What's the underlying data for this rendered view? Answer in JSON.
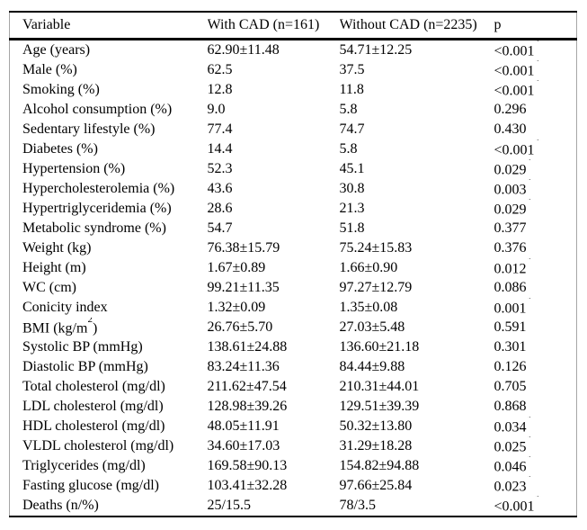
{
  "table": {
    "headers": {
      "variable": "Variable",
      "with_cad": "With CAD (n=161)",
      "without_cad": "Without CAD (n=2235)",
      "p": "p"
    },
    "rows": [
      {
        "variable": "Age (years)",
        "variable_sup": "",
        "variable_post": "",
        "with_cad": "62.90±11.48",
        "without_cad": "54.71±12.25",
        "p": "<0.001",
        "p_sup": "*"
      },
      {
        "variable": "Male (%)",
        "variable_sup": "",
        "variable_post": "",
        "with_cad": "62.5",
        "without_cad": "37.5",
        "p": "<0.001",
        "p_sup": "*"
      },
      {
        "variable": "Smoking (%)",
        "variable_sup": "",
        "variable_post": "",
        "with_cad": "12.8",
        "without_cad": "11.8",
        "p": "<0.001",
        "p_sup": "*"
      },
      {
        "variable": "Alcohol consumption (%)",
        "variable_sup": "",
        "variable_post": "",
        "with_cad": "9.0",
        "without_cad": "5.8",
        "p": "0.296",
        "p_sup": ""
      },
      {
        "variable": "Sedentary lifestyle (%)",
        "variable_sup": "",
        "variable_post": "",
        "with_cad": "77.4",
        "without_cad": "74.7",
        "p": "0.430",
        "p_sup": ""
      },
      {
        "variable": "Diabetes (%)",
        "variable_sup": "",
        "variable_post": "",
        "with_cad": "14.4",
        "without_cad": "5.8",
        "p": "<0.001",
        "p_sup": "*"
      },
      {
        "variable": "Hypertension (%)",
        "variable_sup": "",
        "variable_post": "",
        "with_cad": "52.3",
        "without_cad": "45.1",
        "p": "0.029",
        "p_sup": "*"
      },
      {
        "variable": "Hypercholesterolemia (%)",
        "variable_sup": "",
        "variable_post": "",
        "with_cad": "43.6",
        "without_cad": "30.8",
        "p": "0.003",
        "p_sup": "*"
      },
      {
        "variable": "Hypertriglyceridemia (%)",
        "variable_sup": "",
        "variable_post": "",
        "with_cad": "28.6",
        "without_cad": "21.3",
        "p": "0.029",
        "p_sup": "*"
      },
      {
        "variable": "Metabolic syndrome (%)",
        "variable_sup": "",
        "variable_post": "",
        "with_cad": "54.7",
        "without_cad": "51.8",
        "p": "0.377",
        "p_sup": ""
      },
      {
        "variable": "Weight (kg)",
        "variable_sup": "",
        "variable_post": "",
        "with_cad": "76.38±15.79",
        "without_cad": "75.24±15.83",
        "p": "0.376",
        "p_sup": ""
      },
      {
        "variable": "Height (m)",
        "variable_sup": "",
        "variable_post": "",
        "with_cad": "1.67±0.89",
        "without_cad": "1.66±0.90",
        "p": "0.012",
        "p_sup": "*"
      },
      {
        "variable": "WC (cm)",
        "variable_sup": "",
        "variable_post": "",
        "with_cad": "99.21±11.35",
        "without_cad": "97.27±12.79",
        "p": "0.086",
        "p_sup": ""
      },
      {
        "variable": "Conicity index",
        "variable_sup": "",
        "variable_post": "",
        "with_cad": "1.32±0.09",
        "without_cad": "1.35±0.08",
        "p": "0.001",
        "p_sup": "*"
      },
      {
        "variable": "BMI (kg/m",
        "variable_sup": "2",
        "variable_post": ")",
        "with_cad": "26.76±5.70",
        "without_cad": "27.03±5.48",
        "p": "0.591",
        "p_sup": ""
      },
      {
        "variable": "Systolic BP (mmHg)",
        "variable_sup": "",
        "variable_post": "",
        "with_cad": "138.61±24.88",
        "without_cad": "136.60±21.18",
        "p": "0.301",
        "p_sup": ""
      },
      {
        "variable": "Diastolic BP (mmHg)",
        "variable_sup": "",
        "variable_post": "",
        "with_cad": "83.24±11.36",
        "without_cad": "84.44±9.88",
        "p": "0.126",
        "p_sup": ""
      },
      {
        "variable": "Total cholesterol (mg/dl)",
        "variable_sup": "",
        "variable_post": "",
        "with_cad": "211.62±47.54",
        "without_cad": "210.31±44.01",
        "p": "0.705",
        "p_sup": ""
      },
      {
        "variable": "LDL cholesterol (mg/dl)",
        "variable_sup": "",
        "variable_post": "",
        "with_cad": "128.98±39.26",
        "without_cad": "129.51±39.39",
        "p": "0.868",
        "p_sup": ""
      },
      {
        "variable": "HDL cholesterol (mg/dl)",
        "variable_sup": "",
        "variable_post": "",
        "with_cad": "48.05±11.91",
        "without_cad": "50.32±13.80",
        "p": "0.034",
        "p_sup": "*"
      },
      {
        "variable": "VLDL cholesterol (mg/dl)",
        "variable_sup": "",
        "variable_post": "",
        "with_cad": "34.60±17.03",
        "without_cad": "31.29±18.28",
        "p": "0.025",
        "p_sup": "*"
      },
      {
        "variable": "Triglycerides (mg/dl)",
        "variable_sup": "",
        "variable_post": "",
        "with_cad": "169.58±90.13",
        "without_cad": "154.82±94.88",
        "p": "0.046",
        "p_sup": "*"
      },
      {
        "variable": "Fasting glucose (mg/dl)",
        "variable_sup": "",
        "variable_post": "",
        "with_cad": "103.41±32.28",
        "without_cad": "97.66±25.84",
        "p": "0.023",
        "p_sup": "*"
      },
      {
        "variable": "Deaths (n/%)",
        "variable_sup": "",
        "variable_post": "",
        "with_cad": "25/15.5",
        "without_cad": "78/3.5",
        "p": "<0.001",
        "p_sup": "*"
      }
    ],
    "colors": {
      "text": "#000000",
      "rule": "#000000",
      "side_border": "#a6a6a6",
      "background": "#ffffff"
    }
  }
}
